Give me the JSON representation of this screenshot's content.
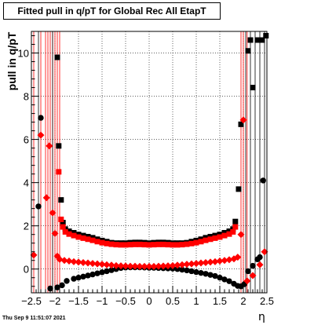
{
  "chart_data": {
    "type": "scatter",
    "title": "Fitted pull in q/pT for Global Rec All EtapT",
    "ylabel": "pull in q/pT",
    "xlabel": "η",
    "xlim": [
      -2.5,
      2.5
    ],
    "ylim": [
      -1.1,
      11.0
    ],
    "x_ticks": [
      -2.5,
      -2,
      -1.5,
      -1,
      -0.5,
      0,
      0.5,
      1,
      1.5,
      2,
      2.5
    ],
    "x_tick_labels": [
      "−2.5",
      "−2",
      "−1.5",
      "−1",
      "−0.5",
      "0",
      "0.5",
      "1",
      "1.5",
      "2",
      "2.5"
    ],
    "y_ticks": [
      0,
      2,
      4,
      6,
      8,
      10
    ],
    "y_tick_labels": [
      "0",
      "2",
      "4",
      "6",
      "8",
      "10"
    ],
    "grid": true,
    "series": [
      {
        "color": "#000000",
        "marker": "square",
        "points": [
          [
            -1.95,
            9.8
          ],
          [
            -1.92,
            5.7
          ],
          [
            -1.87,
            3.2
          ],
          [
            -1.83,
            2.15
          ],
          [
            -1.78,
            1.85
          ],
          [
            -1.7,
            1.75
          ],
          [
            -1.6,
            1.68
          ],
          [
            -1.5,
            1.6
          ],
          [
            -1.4,
            1.55
          ],
          [
            -1.3,
            1.5
          ],
          [
            -1.2,
            1.45
          ],
          [
            -1.1,
            1.38
          ],
          [
            -1.0,
            1.32
          ],
          [
            -0.9,
            1.27
          ],
          [
            -0.8,
            1.22
          ],
          [
            -0.7,
            1.2
          ],
          [
            -0.6,
            1.2
          ],
          [
            -0.5,
            1.2
          ],
          [
            -0.4,
            1.22
          ],
          [
            -0.3,
            1.23
          ],
          [
            -0.2,
            1.23
          ],
          [
            -0.1,
            1.22
          ],
          [
            0.0,
            1.2
          ],
          [
            0.1,
            1.22
          ],
          [
            0.2,
            1.23
          ],
          [
            0.3,
            1.23
          ],
          [
            0.4,
            1.22
          ],
          [
            0.5,
            1.2
          ],
          [
            0.6,
            1.2
          ],
          [
            0.7,
            1.2
          ],
          [
            0.8,
            1.22
          ],
          [
            0.9,
            1.27
          ],
          [
            1.0,
            1.32
          ],
          [
            1.1,
            1.38
          ],
          [
            1.2,
            1.45
          ],
          [
            1.3,
            1.5
          ],
          [
            1.4,
            1.55
          ],
          [
            1.5,
            1.6
          ],
          [
            1.6,
            1.68
          ],
          [
            1.7,
            1.75
          ],
          [
            1.78,
            1.85
          ],
          [
            1.83,
            2.2
          ],
          [
            1.9,
            3.7
          ],
          [
            1.95,
            6.7
          ],
          [
            2.1,
            10.1
          ],
          [
            2.15,
            10.6
          ],
          [
            2.2,
            8.4
          ],
          [
            2.3,
            10.6
          ],
          [
            2.4,
            10.6
          ],
          [
            2.48,
            10.8
          ]
        ]
      },
      {
        "color": "#000000",
        "marker": "circle",
        "points": [
          [
            -2.35,
            2.9
          ],
          [
            -2.3,
            7.0
          ],
          [
            -2.1,
            -0.9
          ],
          [
            -1.95,
            -0.85
          ],
          [
            -1.85,
            -0.75
          ],
          [
            -1.75,
            -0.55
          ],
          [
            -1.6,
            -0.45
          ],
          [
            -1.5,
            -0.4
          ],
          [
            -1.4,
            -0.35
          ],
          [
            -1.3,
            -0.3
          ],
          [
            -1.2,
            -0.25
          ],
          [
            -1.1,
            -0.2
          ],
          [
            -1.0,
            -0.15
          ],
          [
            -0.9,
            -0.1
          ],
          [
            -0.8,
            -0.05
          ],
          [
            -0.7,
            0.0
          ],
          [
            -0.6,
            0.05
          ],
          [
            -0.5,
            0.07
          ],
          [
            -0.4,
            0.08
          ],
          [
            -0.3,
            0.08
          ],
          [
            -0.2,
            0.08
          ],
          [
            -0.1,
            0.07
          ],
          [
            0.0,
            0.06
          ],
          [
            0.1,
            0.06
          ],
          [
            0.2,
            0.05
          ],
          [
            0.3,
            0.04
          ],
          [
            0.4,
            0.03
          ],
          [
            0.5,
            0.02
          ],
          [
            0.6,
            0.0
          ],
          [
            0.7,
            -0.03
          ],
          [
            0.8,
            -0.06
          ],
          [
            0.9,
            -0.1
          ],
          [
            1.0,
            -0.14
          ],
          [
            1.1,
            -0.18
          ],
          [
            1.2,
            -0.22
          ],
          [
            1.3,
            -0.27
          ],
          [
            1.4,
            -0.32
          ],
          [
            1.5,
            -0.4
          ],
          [
            1.6,
            -0.48
          ],
          [
            1.7,
            -0.56
          ],
          [
            1.8,
            -0.68
          ],
          [
            1.88,
            -0.78
          ],
          [
            1.95,
            -0.8
          ],
          [
            2.02,
            -0.7
          ],
          [
            2.1,
            -0.1
          ],
          [
            2.2,
            0.15
          ],
          [
            2.3,
            0.45
          ],
          [
            2.35,
            0.55
          ],
          [
            2.42,
            4.1
          ]
        ]
      },
      {
        "color": "#ff0000",
        "marker": "square",
        "points": [
          [
            -1.92,
            4.5
          ],
          [
            -1.87,
            2.3
          ],
          [
            -1.83,
            1.95
          ],
          [
            -1.78,
            1.72
          ],
          [
            -1.7,
            1.62
          ],
          [
            -1.6,
            1.55
          ],
          [
            -1.5,
            1.48
          ],
          [
            -1.4,
            1.43
          ],
          [
            -1.3,
            1.38
          ],
          [
            -1.2,
            1.33
          ],
          [
            -1.1,
            1.27
          ],
          [
            -1.0,
            1.22
          ],
          [
            -0.9,
            1.18
          ],
          [
            -0.8,
            1.15
          ],
          [
            -0.7,
            1.13
          ],
          [
            -0.6,
            1.12
          ],
          [
            -0.5,
            1.12
          ],
          [
            -0.4,
            1.13
          ],
          [
            -0.3,
            1.14
          ],
          [
            -0.2,
            1.14
          ],
          [
            -0.1,
            1.13
          ],
          [
            0.0,
            1.12
          ],
          [
            0.1,
            1.13
          ],
          [
            0.2,
            1.14
          ],
          [
            0.3,
            1.14
          ],
          [
            0.4,
            1.13
          ],
          [
            0.5,
            1.12
          ],
          [
            0.6,
            1.12
          ],
          [
            0.7,
            1.13
          ],
          [
            0.8,
            1.15
          ],
          [
            0.9,
            1.18
          ],
          [
            1.0,
            1.22
          ],
          [
            1.1,
            1.27
          ],
          [
            1.2,
            1.33
          ],
          [
            1.3,
            1.38
          ],
          [
            1.4,
            1.43
          ],
          [
            1.5,
            1.48
          ],
          [
            1.6,
            1.55
          ],
          [
            1.7,
            1.62
          ],
          [
            1.78,
            1.72
          ],
          [
            1.83,
            1.95
          ]
        ]
      },
      {
        "color": "#ff0000",
        "marker": "diamond",
        "points": [
          [
            -2.45,
            0.65
          ],
          [
            -2.3,
            6.2
          ],
          [
            -2.18,
            3.3
          ],
          [
            -2.12,
            5.7
          ],
          [
            -2.05,
            2.6
          ],
          [
            -2.0,
            1.65
          ],
          [
            -1.95,
            0.6
          ],
          [
            -1.9,
            0.45
          ],
          [
            -1.8,
            0.4
          ],
          [
            -1.7,
            0.37
          ],
          [
            -1.6,
            0.34
          ],
          [
            -1.5,
            0.32
          ],
          [
            -1.4,
            0.3
          ],
          [
            -1.3,
            0.28
          ],
          [
            -1.2,
            0.26
          ],
          [
            -1.1,
            0.24
          ],
          [
            -1.0,
            0.22
          ],
          [
            -0.9,
            0.2
          ],
          [
            -0.8,
            0.18
          ],
          [
            -0.7,
            0.16
          ],
          [
            -0.6,
            0.15
          ],
          [
            -0.5,
            0.14
          ],
          [
            -0.4,
            0.13
          ],
          [
            -0.3,
            0.13
          ],
          [
            -0.2,
            0.12
          ],
          [
            -0.1,
            0.12
          ],
          [
            0.0,
            0.12
          ],
          [
            0.1,
            0.12
          ],
          [
            0.2,
            0.13
          ],
          [
            0.3,
            0.14
          ],
          [
            0.4,
            0.15
          ],
          [
            0.5,
            0.16
          ],
          [
            0.6,
            0.18
          ],
          [
            0.7,
            0.2
          ],
          [
            0.8,
            0.22
          ],
          [
            0.9,
            0.24
          ],
          [
            1.0,
            0.26
          ],
          [
            1.1,
            0.28
          ],
          [
            1.2,
            0.3
          ],
          [
            1.3,
            0.32
          ],
          [
            1.4,
            0.34
          ],
          [
            1.5,
            0.37
          ],
          [
            1.6,
            0.4
          ],
          [
            1.7,
            0.43
          ],
          [
            1.8,
            0.47
          ],
          [
            1.88,
            0.55
          ],
          [
            1.95,
            1.6
          ],
          [
            2.0,
            6.9
          ],
          [
            2.08,
            -0.55
          ],
          [
            2.2,
            -0.3
          ],
          [
            2.35,
            0.2
          ],
          [
            2.45,
            0.8
          ]
        ]
      }
    ],
    "error_bars": [
      {
        "color": "#ff0000",
        "x": [
          -2.45,
          -2.3,
          -2.2,
          -2.15,
          -2.1,
          -2.05,
          -2.0,
          -1.95,
          -1.9,
          1.95,
          2.0,
          2.08
        ]
      },
      {
        "color": "#000000",
        "x": [
          -2.35,
          -2.05,
          2.05,
          2.15,
          2.25,
          2.35,
          2.45
        ]
      }
    ]
  },
  "footer": {
    "timestamp": "Thu Sep  9 11:51:07 2021"
  }
}
